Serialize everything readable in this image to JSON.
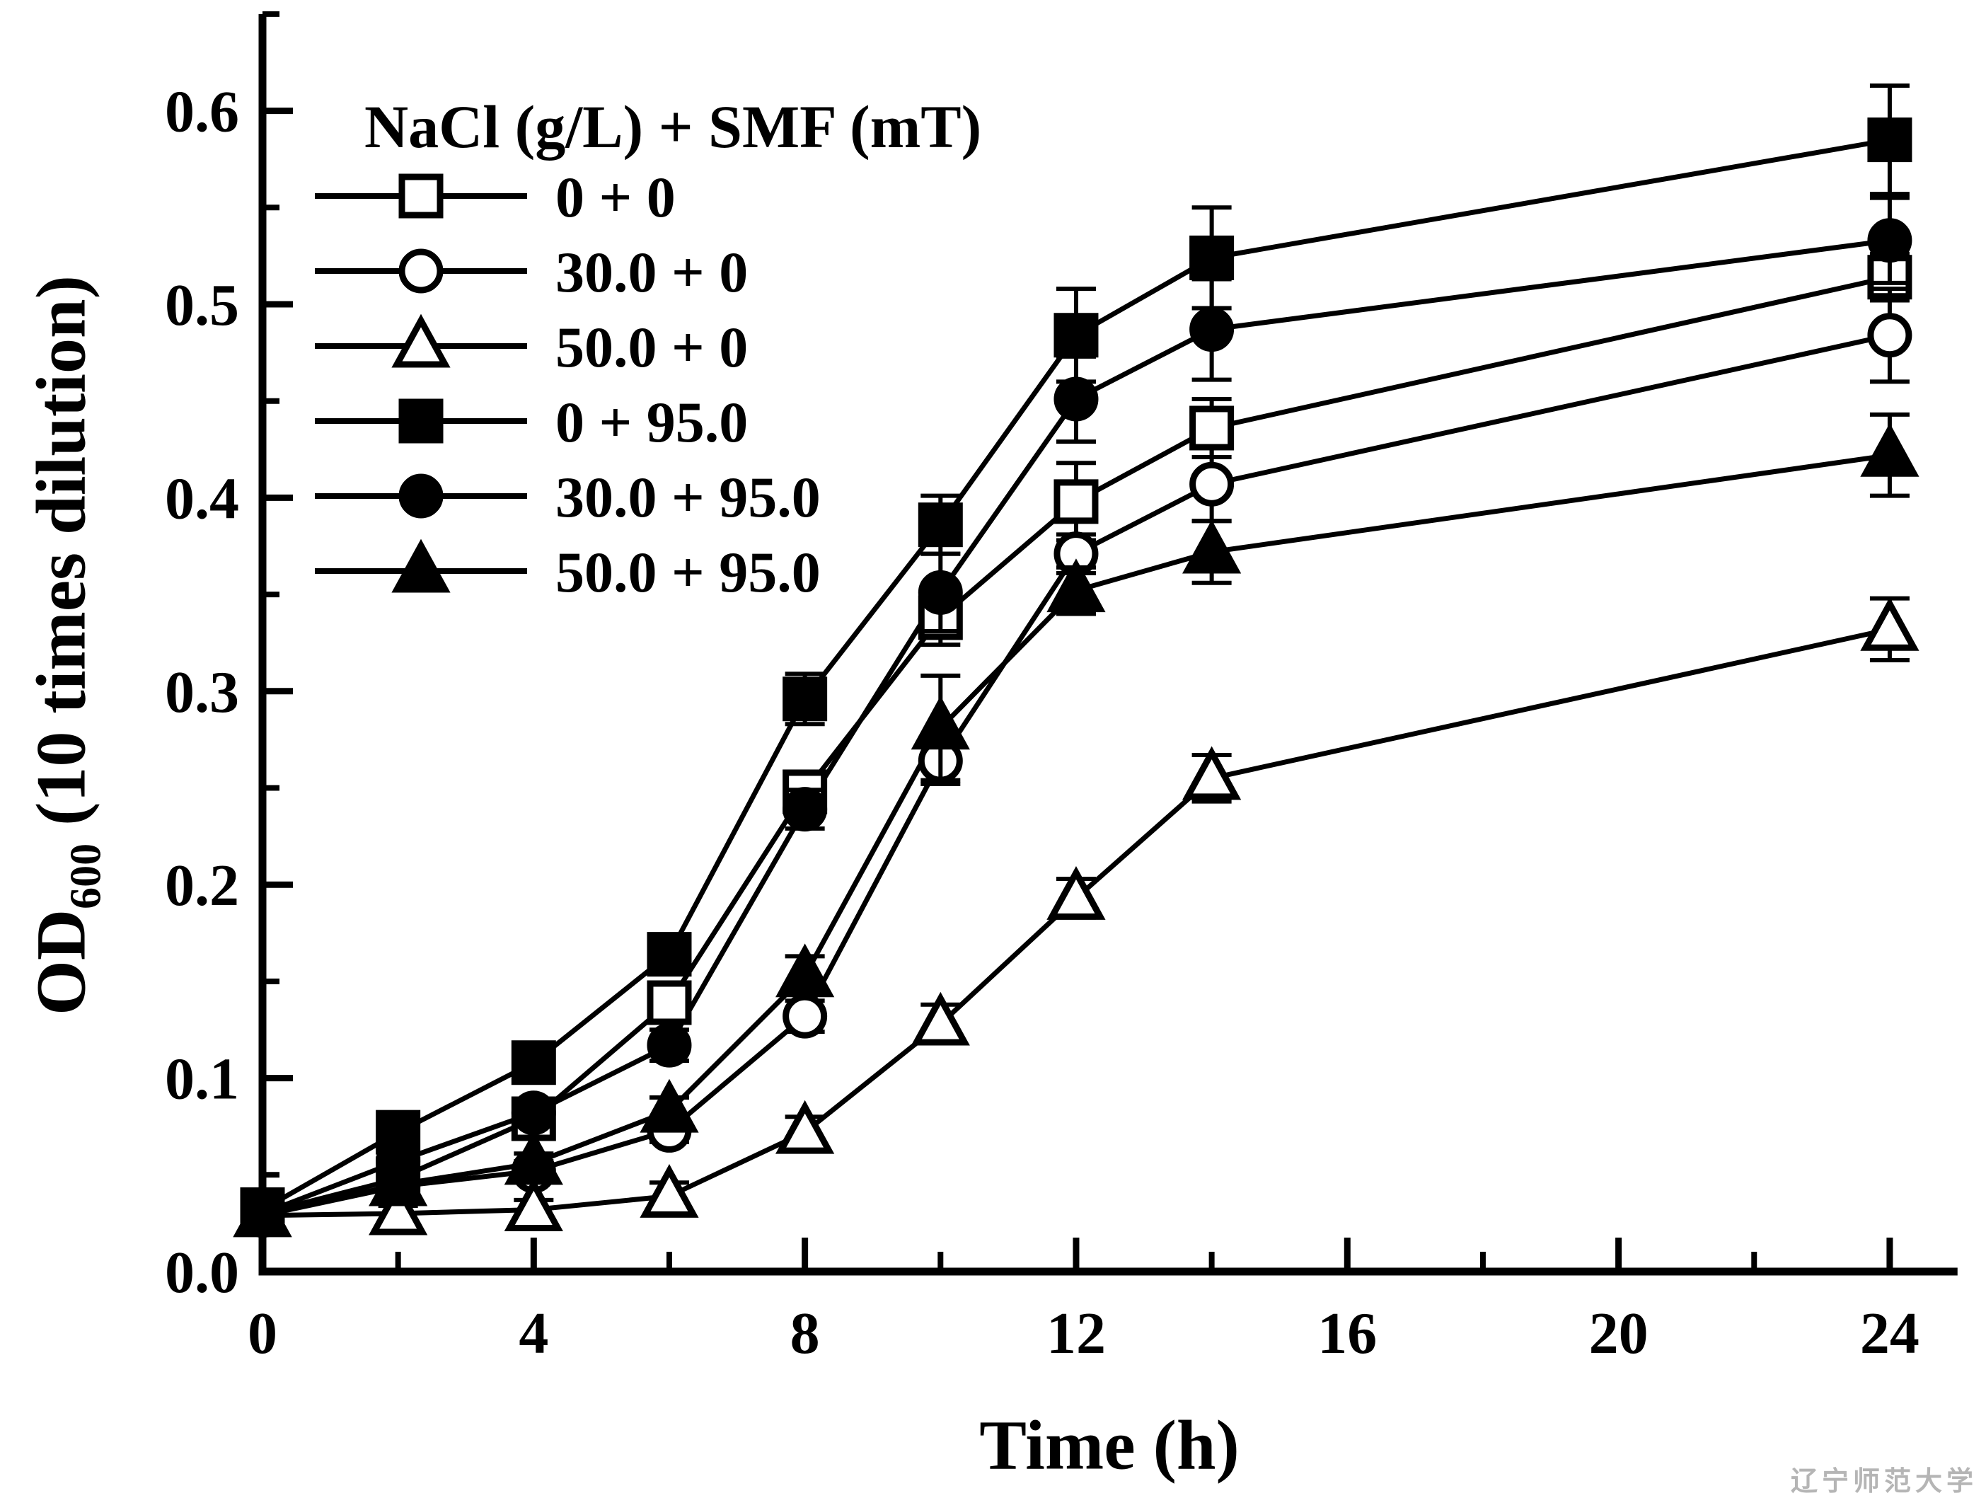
{
  "watermark": {
    "text": "辽宁师范大学",
    "color": "#b5b5b5"
  },
  "chart_data": {
    "type": "line",
    "title": "",
    "xlabel": "Time (h)",
    "ylabel_main": "OD",
    "ylabel_sub": "600",
    "ylabel_rest": " (10 times dilution)",
    "legend_title": "NaCl (g/L) + SMF (mT)",
    "legend_position": "top-left-inside",
    "grid": false,
    "line_color": "#000000",
    "background": "#ffffff",
    "x": [
      0,
      2,
      4,
      6,
      8,
      10,
      12,
      14,
      24
    ],
    "xlim": [
      0,
      25
    ],
    "ylim": [
      0,
      0.65
    ],
    "xticks_major": [
      0,
      4,
      8,
      12,
      16,
      20,
      24
    ],
    "xticks_minor": [
      2,
      6,
      10,
      14,
      18,
      22
    ],
    "yticks_major": [
      0.0,
      0.1,
      0.2,
      0.3,
      0.4,
      0.5,
      0.6
    ],
    "ytick_labels": [
      "0.0",
      "0.1",
      "0.2",
      "0.3",
      "0.4",
      "0.5",
      "0.6"
    ],
    "yticks_minor": [
      0.05,
      0.15,
      0.25,
      0.35,
      0.45,
      0.55,
      0.65
    ],
    "series": [
      {
        "name": "0 + 0",
        "marker": "square",
        "fill": "open",
        "values": [
          0.03,
          0.048,
          0.079,
          0.139,
          0.248,
          0.338,
          0.398,
          0.436,
          0.514
        ],
        "errors": [
          0.004,
          0.004,
          0.005,
          0.007,
          0.01,
          0.014,
          0.02,
          0.015,
          0.012
        ]
      },
      {
        "name": "30.0 + 0",
        "marker": "circle",
        "fill": "open",
        "values": [
          0.029,
          0.044,
          0.052,
          0.073,
          0.132,
          0.264,
          0.371,
          0.407,
          0.484
        ],
        "errors": [
          0.003,
          0.004,
          0.005,
          0.006,
          0.008,
          0.012,
          0.01,
          0.019,
          0.024
        ]
      },
      {
        "name": "50.0 + 0",
        "marker": "triangle",
        "fill": "open",
        "values": [
          0.029,
          0.03,
          0.032,
          0.039,
          0.072,
          0.128,
          0.193,
          0.255,
          0.332
        ],
        "errors": [
          0.003,
          0.004,
          0.005,
          0.007,
          0.008,
          0.01,
          0.01,
          0.012,
          0.016
        ]
      },
      {
        "name": "0 + 95.0",
        "marker": "square",
        "fill": "filled",
        "values": [
          0.032,
          0.072,
          0.108,
          0.164,
          0.296,
          0.386,
          0.484,
          0.524,
          0.585
        ],
        "errors": [
          0.004,
          0.006,
          0.008,
          0.01,
          0.013,
          0.015,
          0.024,
          0.026,
          0.028
        ]
      },
      {
        "name": "30.0 + 95.0",
        "marker": "circle",
        "fill": "filled",
        "values": [
          0.03,
          0.057,
          0.082,
          0.117,
          0.239,
          0.351,
          0.451,
          0.487,
          0.533
        ],
        "errors": [
          0.003,
          0.005,
          0.006,
          0.008,
          0.01,
          0.02,
          0.022,
          0.026,
          0.022
        ]
      },
      {
        "name": "50.0 + 95.0",
        "marker": "triangle",
        "fill": "filled",
        "values": [
          0.029,
          0.045,
          0.056,
          0.083,
          0.153,
          0.281,
          0.352,
          0.372,
          0.422
        ],
        "errors": [
          0.003,
          0.004,
          0.005,
          0.007,
          0.01,
          0.027,
          0.012,
          0.016,
          0.021
        ]
      }
    ]
  }
}
